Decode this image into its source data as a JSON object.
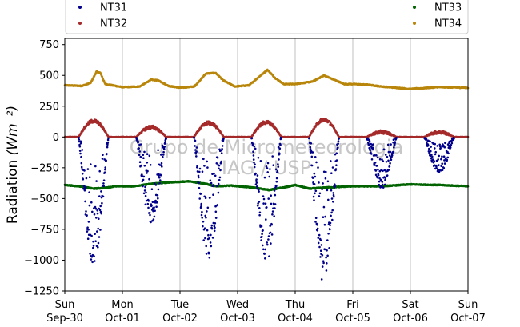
{
  "chart_data": {
    "type": "scatter",
    "title": "",
    "ylabel_prefix": "Radiation ",
    "ylabel_units": "(Wm⁻²)",
    "watermark": [
      "Grupo de Micrometeorologia",
      "IAG / USP"
    ],
    "xlim": [
      0,
      7
    ],
    "ylim": [
      -1250,
      800
    ],
    "yticks": [
      -1250,
      -1000,
      -750,
      -500,
      -250,
      0,
      250,
      500,
      750
    ],
    "ytick_labels": [
      "−1250",
      "−1000",
      "−750",
      "−500",
      "−250",
      "0",
      "250",
      "500",
      "750"
    ],
    "xticks": [
      {
        "pos": 0,
        "day": "Sun",
        "date": "Sep-30"
      },
      {
        "pos": 1,
        "day": "Mon",
        "date": "Oct-01"
      },
      {
        "pos": 2,
        "day": "Tue",
        "date": "Oct-02"
      },
      {
        "pos": 3,
        "day": "Wed",
        "date": "Oct-03"
      },
      {
        "pos": 4,
        "day": "Thu",
        "date": "Oct-04"
      },
      {
        "pos": 5,
        "day": "Fri",
        "date": "Oct-05"
      },
      {
        "pos": 6,
        "day": "Sat",
        "date": "Oct-06"
      },
      {
        "pos": 7,
        "day": "Sun",
        "date": "Oct-07"
      }
    ],
    "grid": "vertical",
    "legend_position": "top",
    "series": [
      {
        "name": "NT31",
        "color": "#00008b",
        "kind": "shortwave_net",
        "daily_min": [
          -1050,
          -700,
          -1000,
          -1020,
          -1200,
          -420,
          -300,
          0
        ]
      },
      {
        "name": "NT32",
        "color": "#a52a2a",
        "kind": "small_positive",
        "daily_peak": [
          130,
          80,
          115,
          120,
          140,
          40,
          40,
          0
        ]
      },
      {
        "name": "NT33",
        "color": "#006400",
        "kind": "longwave_out",
        "keypoints": [
          [
            0,
            -390
          ],
          [
            0.25,
            -400
          ],
          [
            0.5,
            -420
          ],
          [
            0.65,
            -415
          ],
          [
            0.9,
            -400
          ],
          [
            1.2,
            -400
          ],
          [
            1.5,
            -380
          ],
          [
            1.75,
            -370
          ],
          [
            2.15,
            -360
          ],
          [
            2.45,
            -380
          ],
          [
            2.6,
            -400
          ],
          [
            2.9,
            -395
          ],
          [
            3.25,
            -410
          ],
          [
            3.55,
            -430
          ],
          [
            3.8,
            -410
          ],
          [
            4.0,
            -390
          ],
          [
            4.25,
            -420
          ],
          [
            4.55,
            -410
          ],
          [
            5.0,
            -400
          ],
          [
            5.5,
            -400
          ],
          [
            6.0,
            -385
          ],
          [
            6.5,
            -390
          ],
          [
            7.0,
            -400
          ]
        ]
      },
      {
        "name": "NT34",
        "color": "#b8860b",
        "kind": "longwave_in",
        "keypoints": [
          [
            0,
            420
          ],
          [
            0.3,
            415
          ],
          [
            0.45,
            440
          ],
          [
            0.55,
            530
          ],
          [
            0.62,
            520
          ],
          [
            0.7,
            430
          ],
          [
            1.0,
            405
          ],
          [
            1.3,
            410
          ],
          [
            1.5,
            465
          ],
          [
            1.62,
            460
          ],
          [
            1.8,
            415
          ],
          [
            2.0,
            400
          ],
          [
            2.25,
            410
          ],
          [
            2.45,
            515
          ],
          [
            2.62,
            520
          ],
          [
            2.75,
            460
          ],
          [
            2.95,
            410
          ],
          [
            3.2,
            420
          ],
          [
            3.4,
            500
          ],
          [
            3.52,
            545
          ],
          [
            3.65,
            480
          ],
          [
            3.8,
            430
          ],
          [
            4.0,
            430
          ],
          [
            4.3,
            450
          ],
          [
            4.5,
            500
          ],
          [
            4.65,
            470
          ],
          [
            4.85,
            430
          ],
          [
            5.0,
            430
          ],
          [
            5.25,
            425
          ],
          [
            5.5,
            410
          ],
          [
            6.0,
            390
          ],
          [
            6.5,
            405
          ],
          [
            7.0,
            400
          ]
        ]
      }
    ]
  }
}
